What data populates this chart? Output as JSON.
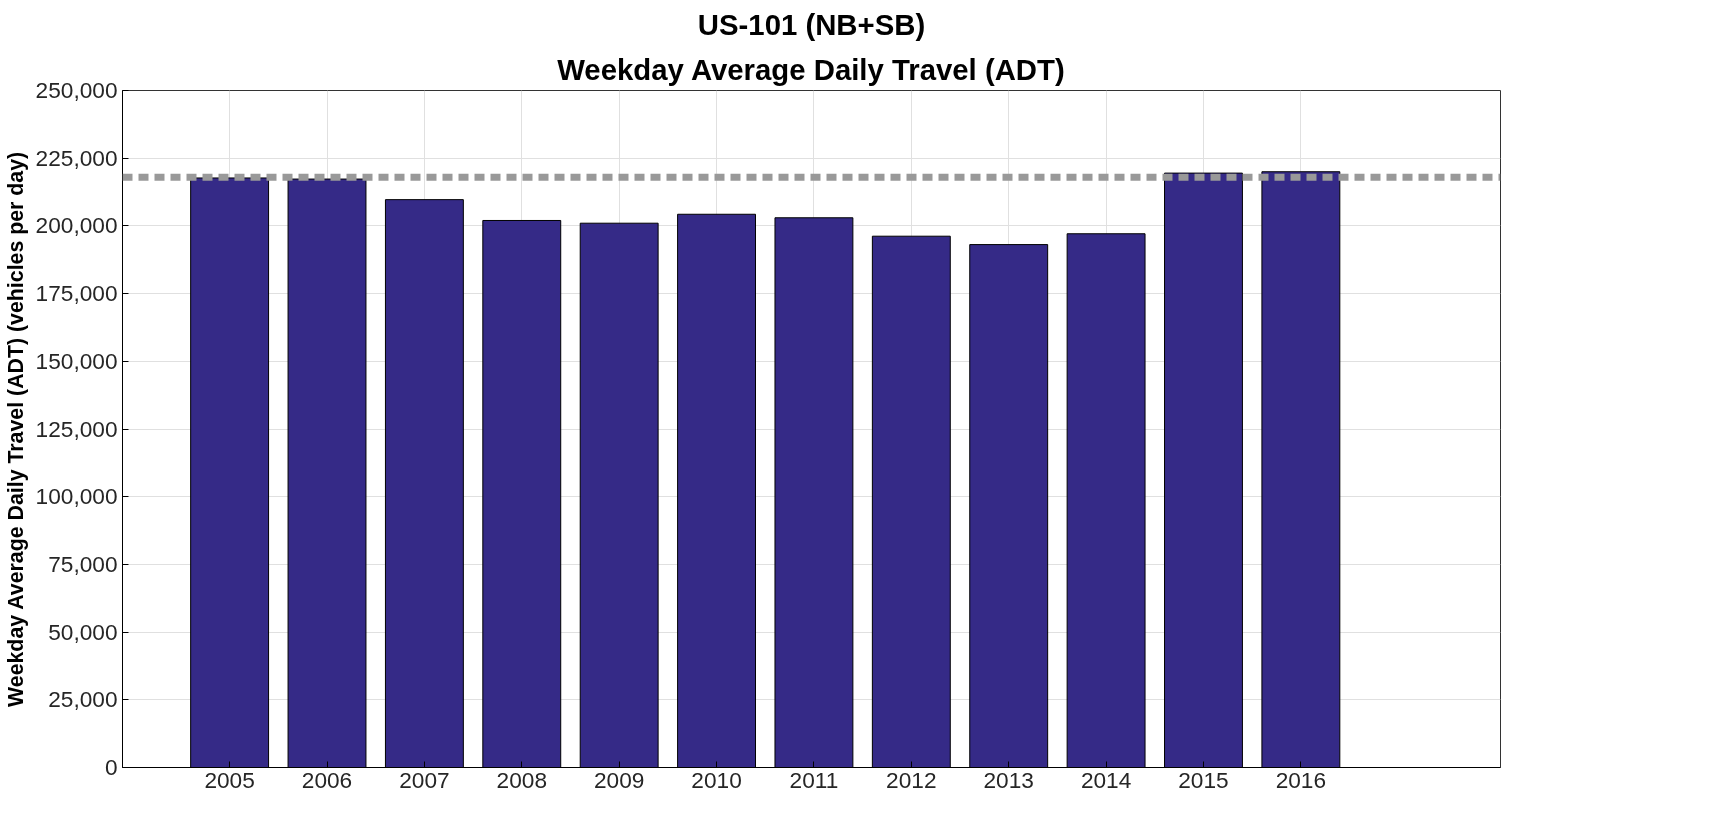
{
  "chart_data": {
    "type": "bar",
    "title": "US-101 (NB+SB)",
    "subtitle": "Weekday Average Daily Travel (ADT)",
    "ylabel": "Weekday Average Daily Travel (ADT) (vehicles per day)",
    "x": [
      2005,
      2006,
      2007,
      2008,
      2009,
      2010,
      2011,
      2012,
      2013,
      2014,
      2015,
      2016
    ],
    "series": [
      {
        "color": "#352a87",
        "values": [
          217700,
          217300,
          209700,
          202000,
          201000,
          204300,
          203000,
          196200,
          193100,
          197100,
          219500,
          220000
        ]
      }
    ],
    "xlim": [
      2003.9,
      2018.05
    ],
    "xticks": [
      2005,
      2006,
      2007,
      2008,
      2009,
      2010,
      2011,
      2012,
      2013,
      2014,
      2015,
      2016
    ],
    "ylim": [
      0,
      250000
    ],
    "yticks": [
      0,
      {
        "value": 25000,
        "label": "25,000"
      },
      {
        "value": 50000,
        "label": "50,000"
      },
      {
        "value": 75000,
        "label": "75,000"
      },
      {
        "value": 100000,
        "label": "100,000"
      },
      {
        "value": 125000,
        "label": "125,000"
      },
      {
        "value": 150000,
        "label": "150,000"
      },
      {
        "value": 175000,
        "label": "175,000"
      },
      {
        "value": 200000,
        "label": "200,000"
      },
      {
        "value": 225000,
        "label": "225,000"
      },
      {
        "value": 250000,
        "label": "250,000"
      }
    ],
    "ref_lines": [
      {
        "axis": "y",
        "value": 218000,
        "color": "#999999",
        "line_style": "dashed"
      }
    ],
    "grid": true
  }
}
